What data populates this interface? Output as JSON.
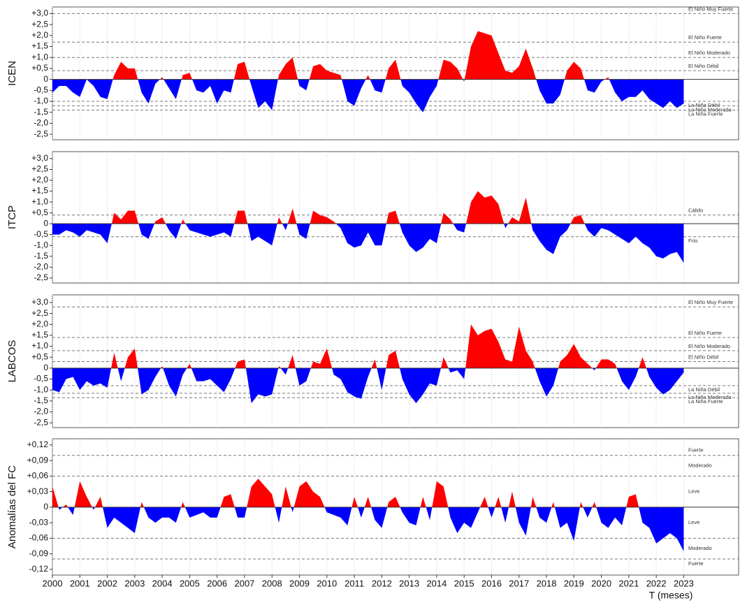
{
  "chart_data": [
    {
      "type": "area",
      "ylabel": "ICEN",
      "positive_color": "#ff0000",
      "negative_color": "#0000ff",
      "xlim": [
        2000,
        2025
      ],
      "ylim": [
        -2.75,
        3.3
      ],
      "yticks": [
        {
          "value": 3,
          "label": "+3,0"
        },
        {
          "value": 2.5,
          "label": "+2,5"
        },
        {
          "value": 2,
          "label": "+2,0"
        },
        {
          "value": 1.5,
          "label": "+1,5"
        },
        {
          "value": 1,
          "label": "+1,0"
        },
        {
          "value": 0.5,
          "label": "+0,5"
        },
        0,
        {
          "value": -0.5,
          "label": "-0,5"
        },
        {
          "value": -1,
          "label": "-1,0"
        },
        {
          "value": -1.5,
          "label": "-1,5"
        },
        {
          "value": -2,
          "label": "-2,0"
        },
        {
          "value": -2.5,
          "label": "-2,5"
        }
      ],
      "thresholds": [
        {
          "value": 3,
          "label": "El Niño Muy Fuerte"
        },
        {
          "value": 1.7,
          "label": "El Niño Fuerte"
        },
        {
          "value": 1,
          "label": "El Niño Moderado"
        },
        {
          "value": 0.4,
          "label": "El Niño Débil"
        },
        {
          "value": -1,
          "label": "La Niña Débil"
        },
        {
          "value": -1.2,
          "label": "La Niña Moderada"
        },
        {
          "value": -1.4,
          "label": "La Niña Fuerte"
        }
      ],
      "x": [
        2000,
        2000.25,
        2000.5,
        2000.75,
        2001,
        2001.25,
        2001.5,
        2001.75,
        2002,
        2002.25,
        2002.5,
        2002.75,
        2003,
        2003.25,
        2003.5,
        2003.75,
        2004,
        2004.25,
        2004.5,
        2004.75,
        2005,
        2005.25,
        2005.5,
        2005.75,
        2006,
        2006.25,
        2006.5,
        2006.75,
        2007,
        2007.25,
        2007.5,
        2007.75,
        2008,
        2008.25,
        2008.5,
        2008.75,
        2009,
        2009.25,
        2009.5,
        2009.75,
        2010,
        2010.25,
        2010.5,
        2010.75,
        2011,
        2011.25,
        2011.5,
        2011.75,
        2012,
        2012.25,
        2012.5,
        2012.75,
        2013,
        2013.25,
        2013.5,
        2013.75,
        2014,
        2014.25,
        2014.5,
        2014.75,
        2015,
        2015.25,
        2015.5,
        2015.75,
        2016,
        2016.25,
        2016.5,
        2016.75,
        2017,
        2017.25,
        2017.5,
        2017.75,
        2018,
        2018.25,
        2018.5,
        2018.75,
        2019,
        2019.25,
        2019.5,
        2019.75,
        2020,
        2020.25,
        2020.5,
        2020.75,
        2021,
        2021.25,
        2021.5,
        2021.75,
        2022,
        2022.25,
        2022.5,
        2022.75,
        2023
      ],
      "values": [
        -0.6,
        -0.3,
        -0.3,
        -0.6,
        -0.8,
        0,
        -0.3,
        -0.8,
        -0.9,
        0.2,
        0.8,
        0.5,
        0.5,
        -0.6,
        -1.1,
        -0.2,
        0.1,
        -0.4,
        -0.9,
        0.2,
        0.3,
        -0.5,
        -0.6,
        -0.3,
        -1.1,
        -0.5,
        -0.6,
        0.7,
        0.8,
        -0.3,
        -1.3,
        -1.0,
        -1.4,
        0.2,
        0.7,
        1.0,
        -0.3,
        -0.5,
        0.6,
        0.7,
        0.4,
        0.3,
        0.2,
        -1.0,
        -1.2,
        -0.4,
        0.2,
        -0.5,
        -0.6,
        0.5,
        0.9,
        -0.3,
        -0.6,
        -1.1,
        -1.5,
        -0.8,
        -0.3,
        0.9,
        0.8,
        0.5,
        -0.1,
        1.5,
        2.2,
        2.1,
        2.0,
        1.2,
        0.4,
        0.3,
        0.6,
        1.4,
        0.5,
        -0.5,
        -1.1,
        -1.1,
        -0.7,
        0.4,
        0.8,
        0.5,
        -0.5,
        -0.6,
        -0.1,
        0.1,
        -0.6,
        -1.0,
        -0.8,
        -0.8,
        -0.5,
        -0.9,
        -1.1,
        -1.3,
        -1.0,
        -1.3,
        -1.1
      ]
    },
    {
      "type": "area",
      "ylabel": "ITCP",
      "positive_color": "#ff0000",
      "negative_color": "#0000ff",
      "xlim": [
        2000,
        2025
      ],
      "ylim": [
        -2.73,
        3.32
      ],
      "yticks": [
        {
          "value": 3,
          "label": "+3,0"
        },
        {
          "value": 2.5,
          "label": "+2,5"
        },
        {
          "value": 2,
          "label": "+2,0"
        },
        {
          "value": 1.5,
          "label": "+1,5"
        },
        {
          "value": 1,
          "label": "+1,0"
        },
        {
          "value": 0.5,
          "label": "+0,5"
        },
        0,
        {
          "value": -0.5,
          "label": "-0,5"
        },
        {
          "value": -1,
          "label": "-1,0"
        },
        {
          "value": -1.5,
          "label": "-1,5"
        },
        {
          "value": -2,
          "label": "-2,0"
        },
        {
          "value": -2.5,
          "label": "-2,5"
        }
      ],
      "thresholds": [
        {
          "value": 0.4,
          "label": "Cálido"
        },
        {
          "value": -0.6,
          "label": "Frío"
        }
      ],
      "x": [
        2000,
        2000.25,
        2000.5,
        2000.75,
        2001,
        2001.25,
        2001.5,
        2001.75,
        2002,
        2002.25,
        2002.5,
        2002.75,
        2003,
        2003.25,
        2003.5,
        2003.75,
        2004,
        2004.25,
        2004.5,
        2004.75,
        2005,
        2005.25,
        2005.5,
        2005.75,
        2006,
        2006.25,
        2006.5,
        2006.75,
        2007,
        2007.25,
        2007.5,
        2007.75,
        2008,
        2008.25,
        2008.5,
        2008.75,
        2009,
        2009.25,
        2009.5,
        2009.75,
        2010,
        2010.25,
        2010.5,
        2010.75,
        2011,
        2011.25,
        2011.5,
        2011.75,
        2012,
        2012.25,
        2012.5,
        2012.75,
        2013,
        2013.25,
        2013.5,
        2013.75,
        2014,
        2014.25,
        2014.5,
        2014.75,
        2015,
        2015.25,
        2015.5,
        2015.75,
        2016,
        2016.25,
        2016.5,
        2016.75,
        2017,
        2017.25,
        2017.5,
        2017.75,
        2018,
        2018.25,
        2018.5,
        2018.75,
        2019,
        2019.25,
        2019.5,
        2019.75,
        2020,
        2020.25,
        2020.5,
        2020.75,
        2021,
        2021.25,
        2021.5,
        2021.75,
        2022,
        2022.25,
        2022.5,
        2022.75,
        2023
      ],
      "values": [
        -0.5,
        -0.5,
        -0.3,
        -0.4,
        -0.6,
        -0.3,
        -0.4,
        -0.5,
        -0.9,
        0.5,
        0.2,
        0.6,
        0.6,
        -0.5,
        -0.7,
        0.1,
        0.3,
        -0.3,
        -0.7,
        0.2,
        -0.3,
        -0.4,
        -0.5,
        -0.6,
        -0.5,
        -0.4,
        -0.6,
        0.6,
        0.6,
        -0.8,
        -0.6,
        -0.8,
        -1.0,
        0.3,
        -0.3,
        0.7,
        -0.5,
        -0.7,
        0.6,
        0.4,
        0.3,
        0.1,
        -0.2,
        -0.9,
        -1.1,
        -1.0,
        -0.4,
        -1.0,
        -1.0,
        0.5,
        0.6,
        -0.4,
        -1.0,
        -1.3,
        -1.1,
        -0.7,
        -0.9,
        0.5,
        0.2,
        -0.3,
        -0.4,
        1.0,
        1.5,
        1.2,
        1.3,
        0.9,
        -0.2,
        0.3,
        0.1,
        1.2,
        -0.3,
        -0.8,
        -1.2,
        -1.4,
        -0.6,
        -0.3,
        0.3,
        0.4,
        -0.3,
        -0.6,
        -0.2,
        -0.3,
        -0.5,
        -0.7,
        -0.9,
        -0.6,
        -0.9,
        -1.1,
        -1.5,
        -1.6,
        -1.4,
        -1.3,
        -1.8
      ]
    },
    {
      "type": "area",
      "ylabel": "LABCOS",
      "positive_color": "#ff0000",
      "negative_color": "#0000ff",
      "xlim": [
        2000,
        2025
      ],
      "ylim": [
        -2.72,
        3.35
      ],
      "yticks": [
        {
          "value": 3,
          "label": "+3,0"
        },
        {
          "value": 2.5,
          "label": "+2,5"
        },
        {
          "value": 2,
          "label": "+2,0"
        },
        {
          "value": 1.5,
          "label": "+1,5"
        },
        {
          "value": 1,
          "label": "+1,0"
        },
        {
          "value": 0.5,
          "label": "+0,5"
        },
        0,
        {
          "value": -0.5,
          "label": "-0,5"
        },
        {
          "value": -1,
          "label": "-1,0"
        },
        {
          "value": -1.5,
          "label": "-1,5"
        },
        {
          "value": -2,
          "label": "-2,0"
        },
        {
          "value": -2.5,
          "label": "-2,5"
        }
      ],
      "thresholds": [
        {
          "value": 2.8,
          "label": "El Niño Muy Fuerte"
        },
        {
          "value": 1.4,
          "label": "El Niño Fuerte"
        },
        {
          "value": 0.8,
          "label": "El Niño Moderado"
        },
        {
          "value": 0.3,
          "label": "El Niño Débil"
        },
        {
          "value": -0.8,
          "label": "La Niña Débil"
        },
        {
          "value": -1.15,
          "label": "La Niña Moderada"
        },
        {
          "value": -1.35,
          "label": "La Niña Fuerte"
        }
      ],
      "x": [
        2000,
        2000.25,
        2000.5,
        2000.75,
        2001,
        2001.25,
        2001.5,
        2001.75,
        2002,
        2002.25,
        2002.5,
        2002.75,
        2003,
        2003.25,
        2003.5,
        2003.75,
        2004,
        2004.25,
        2004.5,
        2004.75,
        2005,
        2005.25,
        2005.5,
        2005.75,
        2006,
        2006.25,
        2006.5,
        2006.75,
        2007,
        2007.25,
        2007.5,
        2007.75,
        2008,
        2008.25,
        2008.5,
        2008.75,
        2009,
        2009.25,
        2009.5,
        2009.75,
        2010,
        2010.25,
        2010.5,
        2010.75,
        2011,
        2011.25,
        2011.5,
        2011.75,
        2012,
        2012.25,
        2012.5,
        2012.75,
        2013,
        2013.25,
        2013.5,
        2013.75,
        2014,
        2014.25,
        2014.5,
        2014.75,
        2015,
        2015.25,
        2015.5,
        2015.75,
        2016,
        2016.25,
        2016.5,
        2016.75,
        2017,
        2017.25,
        2017.5,
        2017.75,
        2018,
        2018.25,
        2018.5,
        2018.75,
        2019,
        2019.25,
        2019.5,
        2019.75,
        2020,
        2020.25,
        2020.5,
        2020.75,
        2021,
        2021.25,
        2021.5,
        2021.75,
        2022,
        2022.25,
        2022.5,
        2022.75,
        2023
      ],
      "values": [
        -1.0,
        -1.1,
        -0.5,
        -0.4,
        -1.0,
        -0.6,
        -0.8,
        -0.7,
        -0.9,
        0.7,
        -0.6,
        0.5,
        0.9,
        -1.2,
        -1.0,
        -0.4,
        0.1,
        -0.8,
        -1.3,
        -0.3,
        0.2,
        -0.6,
        -0.6,
        -0.5,
        -0.8,
        -1.1,
        -0.5,
        0.3,
        0.4,
        -1.6,
        -1.2,
        -1.3,
        -1.2,
        0.1,
        -0.3,
        0.6,
        -0.8,
        -0.6,
        0.3,
        0.2,
        0.9,
        -0.3,
        -0.5,
        -1.1,
        -1.3,
        -1.4,
        -0.4,
        0.4,
        -1.0,
        0.6,
        0.8,
        -0.5,
        -1.2,
        -1.6,
        -1.2,
        -0.7,
        -0.8,
        0.5,
        -0.2,
        -0.1,
        -0.5,
        2.0,
        1.5,
        1.7,
        1.8,
        1.2,
        0.4,
        0.3,
        1.9,
        0.8,
        0.3,
        -0.6,
        -1.3,
        -0.8,
        0.3,
        0.6,
        1.1,
        0.5,
        0.2,
        -0.1,
        0.4,
        0.4,
        0.2,
        -0.6,
        -1.0,
        -0.4,
        0.5,
        -0.4,
        -0.9,
        -1.2,
        -1.0,
        -0.6,
        -0.2
      ]
    },
    {
      "type": "area",
      "ylabel": "Anomalías del FC",
      "xlabel": "T (meses)",
      "positive_color": "#ff0000",
      "negative_color": "#0000ff",
      "xlim": [
        2000,
        2025
      ],
      "ylim": [
        -0.131,
        0.132
      ],
      "yticks": [
        {
          "value": 0.12,
          "label": "+0,12"
        },
        {
          "value": 0.09,
          "label": "+0,09"
        },
        {
          "value": 0.06,
          "label": "+0,06"
        },
        {
          "value": 0.03,
          "label": "+0,03"
        },
        0,
        {
          "value": -0.03,
          "label": "-0,03"
        },
        {
          "value": -0.06,
          "label": "-0,06"
        },
        {
          "value": -0.09,
          "label": "-0,09"
        },
        {
          "value": -0.12,
          "label": "-0,12"
        }
      ],
      "xticks": [
        2000,
        2001,
        2002,
        2003,
        2004,
        2005,
        2006,
        2007,
        2008,
        2009,
        2010,
        2011,
        2012,
        2013,
        2014,
        2015,
        2016,
        2017,
        2018,
        2019,
        2020,
        2021,
        2022,
        2023
      ],
      "bands": [
        {
          "label": "Fuerte",
          "from": 0.1
        },
        {
          "label": "Moderado",
          "from": 0.06,
          "to": 0.1
        },
        {
          "label": "Leve",
          "from": 0,
          "to": 0.06
        },
        {
          "label": "Leve",
          "from": 0,
          "to": -0.06
        },
        {
          "label": "Moderado",
          "from": -0.06,
          "to": -0.1
        },
        {
          "label": "Fuerte",
          "from": -0.1
        }
      ],
      "x": [
        2000,
        2000.25,
        2000.5,
        2000.75,
        2001,
        2001.25,
        2001.5,
        2001.75,
        2002,
        2002.25,
        2002.5,
        2002.75,
        2003,
        2003.25,
        2003.5,
        2003.75,
        2004,
        2004.25,
        2004.5,
        2004.75,
        2005,
        2005.25,
        2005.5,
        2005.75,
        2006,
        2006.25,
        2006.5,
        2006.75,
        2007,
        2007.25,
        2007.5,
        2007.75,
        2008,
        2008.25,
        2008.5,
        2008.75,
        2009,
        2009.25,
        2009.5,
        2009.75,
        2010,
        2010.25,
        2010.5,
        2010.75,
        2011,
        2011.25,
        2011.5,
        2011.75,
        2012,
        2012.25,
        2012.5,
        2012.75,
        2013,
        2013.25,
        2013.5,
        2013.75,
        2014,
        2014.25,
        2014.5,
        2014.75,
        2015,
        2015.25,
        2015.5,
        2015.75,
        2016,
        2016.25,
        2016.5,
        2016.75,
        2017,
        2017.25,
        2017.5,
        2017.75,
        2018,
        2018.25,
        2018.5,
        2018.75,
        2019,
        2019.25,
        2019.5,
        2019.75,
        2020,
        2020.25,
        2020.5,
        2020.75,
        2021,
        2021.25,
        2021.5,
        2021.75,
        2022,
        2022.25,
        2022.5,
        2022.75,
        2023
      ],
      "values": [
        0.04,
        -0.005,
        0.005,
        -0.015,
        0.05,
        0.02,
        -0.005,
        0.02,
        -0.04,
        -0.02,
        -0.03,
        -0.04,
        -0.05,
        0.01,
        -0.02,
        -0.03,
        -0.02,
        -0.02,
        -0.03,
        0.01,
        -0.02,
        -0.015,
        -0.01,
        -0.02,
        -0.02,
        0.02,
        0.025,
        -0.02,
        -0.02,
        0.04,
        0.055,
        0.04,
        0.025,
        -0.03,
        0.04,
        -0.01,
        0.04,
        0.05,
        0.03,
        0.02,
        -0.01,
        -0.015,
        -0.02,
        -0.035,
        0.02,
        -0.02,
        0.02,
        -0.025,
        -0.04,
        0.01,
        0.02,
        -0.01,
        -0.03,
        -0.035,
        0.02,
        -0.025,
        0.05,
        0.04,
        -0.02,
        -0.05,
        -0.03,
        -0.04,
        -0.01,
        0.02,
        -0.02,
        0.02,
        -0.03,
        0.03,
        -0.03,
        -0.055,
        0.02,
        -0.02,
        -0.03,
        0.01,
        -0.04,
        -0.03,
        -0.065,
        0.01,
        -0.02,
        0.01,
        -0.03,
        -0.04,
        -0.02,
        -0.035,
        0.02,
        0.025,
        -0.03,
        -0.04,
        -0.07,
        -0.06,
        -0.05,
        -0.06,
        -0.085
      ]
    }
  ]
}
